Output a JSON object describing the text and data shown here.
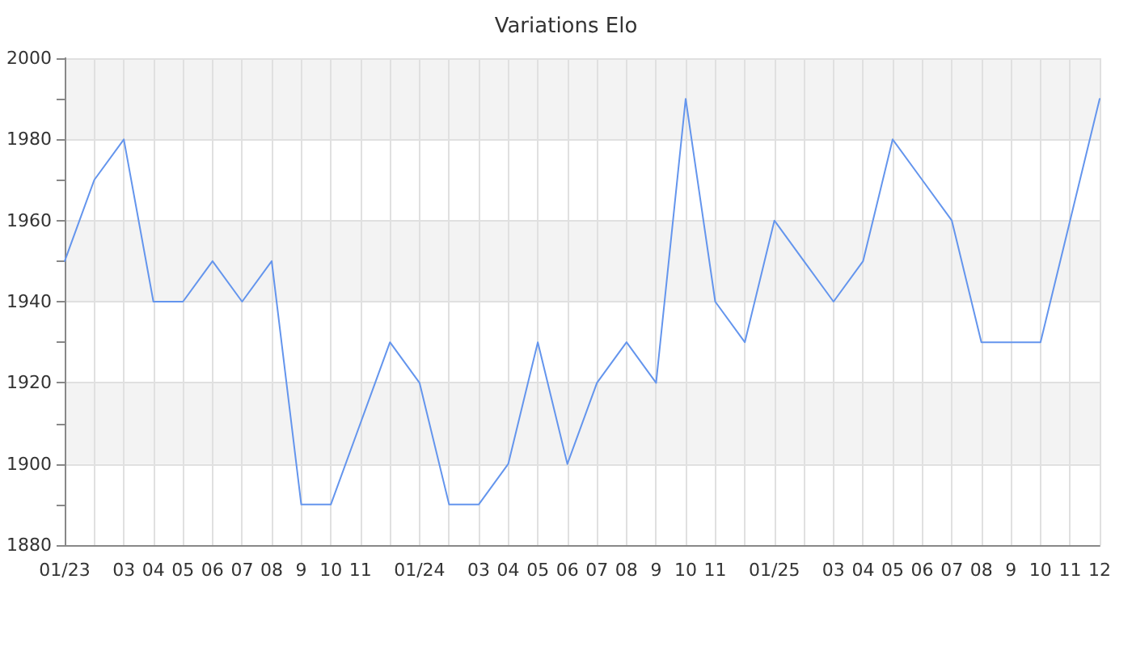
{
  "chart_data": {
    "type": "line",
    "title": "Variations Elo",
    "categories": [
      "01/23",
      null,
      "03",
      "04",
      "05",
      "06",
      "07",
      "08",
      "9",
      "10",
      "11",
      null,
      "01/24",
      null,
      "03",
      "04",
      "05",
      "06",
      "07",
      "08",
      "9",
      "10",
      "11",
      null,
      "01/25",
      null,
      "03",
      "04",
      "05",
      "06",
      "07",
      "08",
      "9",
      "10",
      "11",
      "12"
    ],
    "values": [
      1950,
      1970,
      1980,
      1940,
      1940,
      1950,
      1940,
      1950,
      1890,
      1890,
      1910,
      1930,
      1920,
      1890,
      1890,
      1900,
      1930,
      1900,
      1920,
      1930,
      1920,
      1990,
      1940,
      1930,
      1960,
      1950,
      1940,
      1950,
      1980,
      1970,
      1960,
      1930,
      1930,
      1930,
      1960,
      1990
    ],
    "color": "#6495ed",
    "ylim": [
      1880,
      2000
    ],
    "yticks": [
      1880,
      {
        "value": 1890,
        "label": null
      },
      1900,
      {
        "value": 1910,
        "label": null
      },
      1920,
      {
        "value": 1930,
        "label": null
      },
      1940,
      {
        "value": 1950,
        "label": null
      },
      1960,
      {
        "value": 1970,
        "label": null
      },
      1980,
      {
        "value": 1990,
        "label": null
      },
      2000
    ],
    "grid": true,
    "marker": "none",
    "line_style": "solid"
  }
}
